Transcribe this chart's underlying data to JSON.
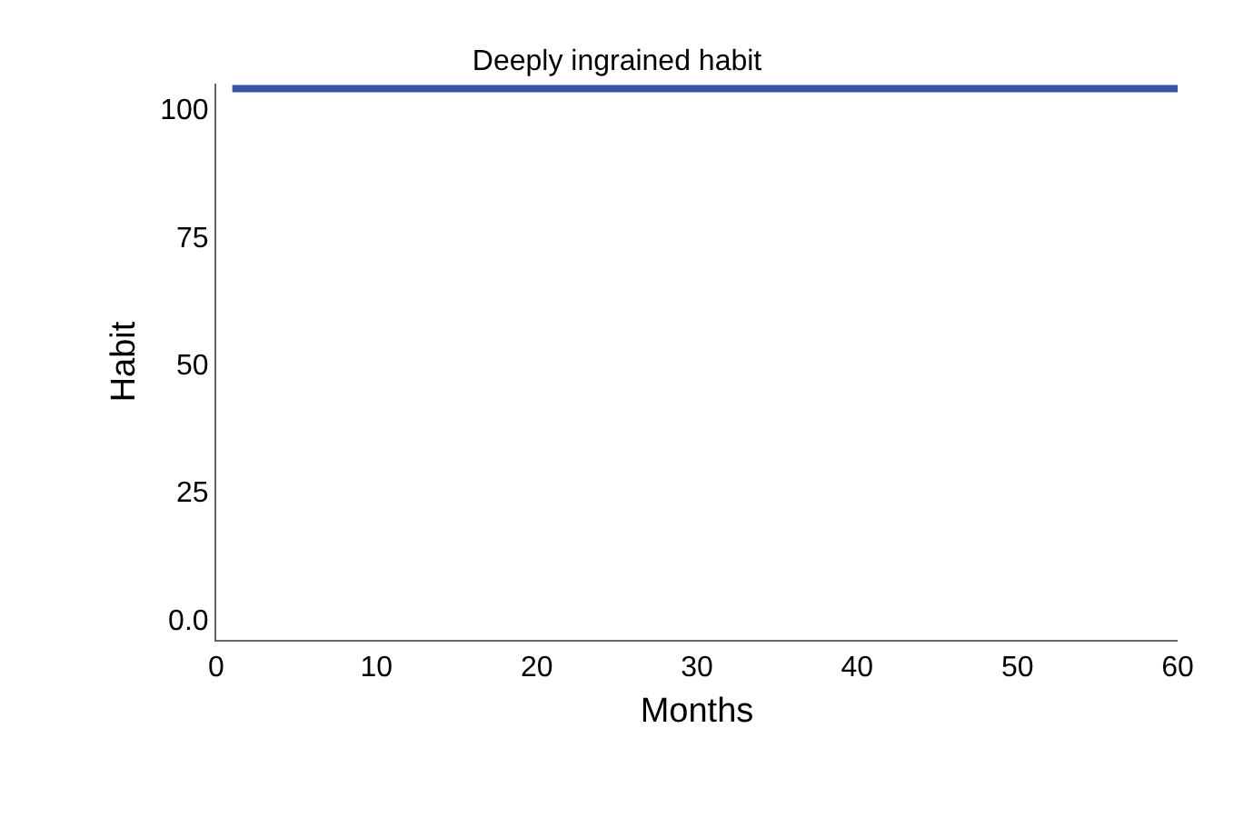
{
  "chart_data": {
    "type": "line",
    "title": "Deeply ingrained habit",
    "xlabel": "Months",
    "ylabel": "Habit",
    "x": [
      1,
      60
    ],
    "series": [
      {
        "color": "#3b53a4",
        "values": [
          104,
          104
        ]
      }
    ],
    "xlim": [
      0,
      60
    ],
    "xticks": [
      0,
      10,
      20,
      30,
      40,
      50,
      60
    ],
    "ylim": [
      -4,
      105
    ],
    "yticks": [
      {
        "value": 0,
        "label": "0.0"
      },
      25,
      50,
      75,
      100
    ],
    "marker": "none",
    "line_style": "solid"
  }
}
